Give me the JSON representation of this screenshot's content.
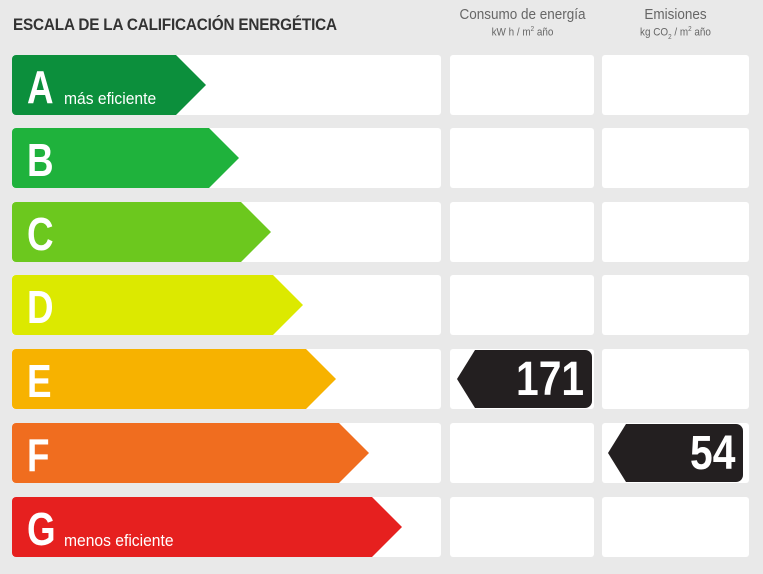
{
  "title": "ESCALA DE LA CALIFICACIÓN ENERGÉTICA",
  "columns": {
    "consumption": {
      "title": "Consumo de energía",
      "unit_prefix": "kW h / m",
      "unit_sup": "2",
      "unit_suffix": " año"
    },
    "emissions": {
      "title": "Emisiones",
      "unit_prefix": "kg CO",
      "unit_sub": "2",
      "unit_mid": " / m",
      "unit_sup": "2",
      "unit_suffix": " año"
    }
  },
  "ratings": [
    {
      "letter": "A",
      "label": "más eficiente",
      "color": "#0c8f3c"
    },
    {
      "letter": "B",
      "label": "",
      "color": "#1fb23c"
    },
    {
      "letter": "C",
      "label": "",
      "color": "#6cc81e"
    },
    {
      "letter": "D",
      "label": "",
      "color": "#dce900"
    },
    {
      "letter": "E",
      "label": "",
      "color": "#f7b200"
    },
    {
      "letter": "F",
      "label": "",
      "color": "#f06d1f"
    },
    {
      "letter": "G",
      "label": "menos eficiente",
      "color": "#e6201f"
    }
  ],
  "consumption_rating": {
    "letter": "E",
    "value": "171"
  },
  "emissions_rating": {
    "letter": "F",
    "value": "54"
  }
}
